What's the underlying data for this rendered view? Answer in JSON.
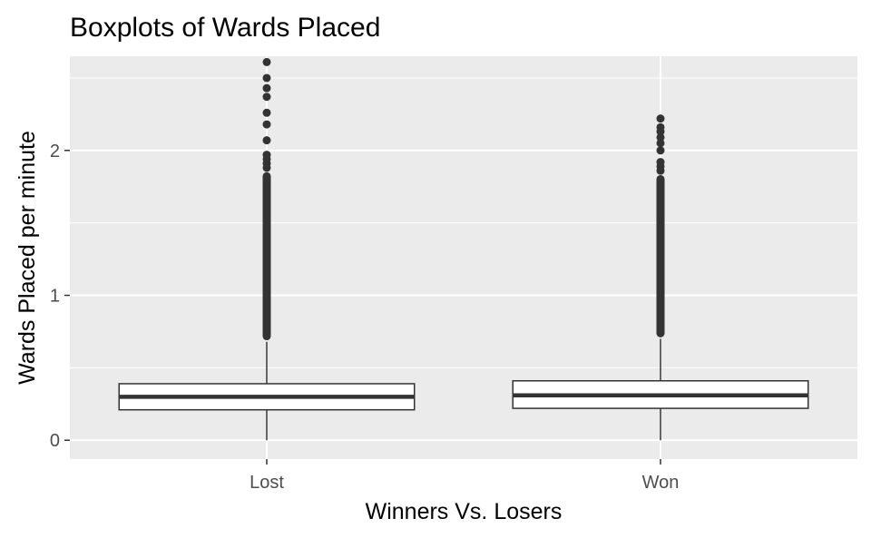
{
  "chart_data": {
    "type": "boxplot",
    "title": "Boxplots of Wards Placed",
    "xlabel": "Winners Vs. Losers",
    "ylabel": "Wards Placed per minute",
    "categories": [
      "Lost",
      "Won"
    ],
    "ylim": [
      -0.13,
      2.65
    ],
    "yticks": [
      0,
      1,
      2
    ],
    "grid": true,
    "legend": "none",
    "colors": {
      "panel": "#ebebeb",
      "grid": "#ffffff",
      "box_fill": "#ffffff",
      "box_line": "#333333",
      "outlier": "#333333",
      "tick_label": "#4d4d4d"
    },
    "boxes": [
      {
        "category": "Lost",
        "whisker_low": 0.0,
        "q1": 0.21,
        "median": 0.3,
        "q3": 0.39,
        "whisker_high": 0.68,
        "outliers_dense": [
          0.69,
          1.85
        ],
        "outliers": [
          1.88,
          1.91,
          1.94,
          1.97,
          2.07,
          2.18,
          2.26,
          2.37,
          2.43,
          2.5,
          2.61
        ]
      },
      {
        "category": "Won",
        "whisker_low": 0.0,
        "q1": 0.22,
        "median": 0.31,
        "q3": 0.41,
        "whisker_high": 0.7,
        "outliers_dense": [
          0.71,
          1.83
        ],
        "outliers": [
          1.86,
          1.89,
          1.92,
          2.0,
          2.05,
          2.09,
          2.13,
          2.16,
          2.22
        ]
      }
    ]
  }
}
